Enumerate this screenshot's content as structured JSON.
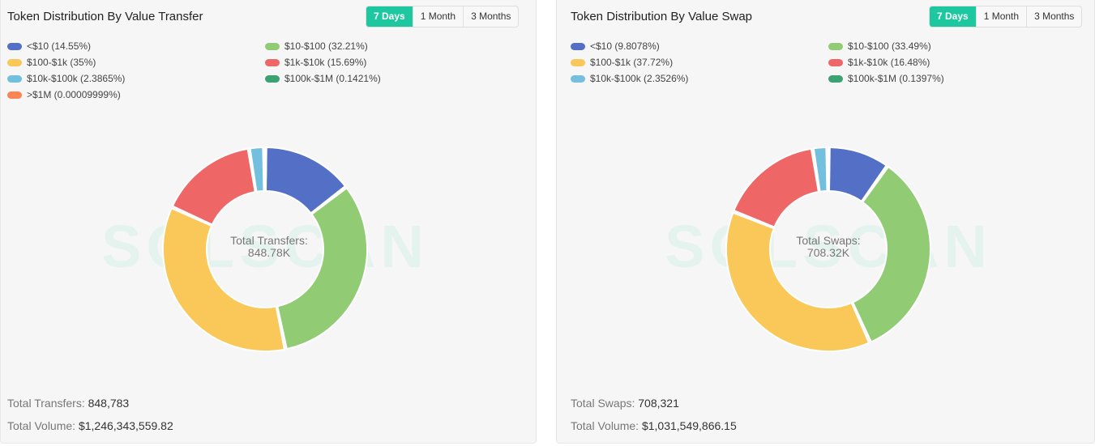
{
  "colors": {
    "accent": "#1dc8a0",
    "blue": "#5470c6",
    "green": "#91cc75",
    "yellow": "#fac858",
    "red": "#ee6666",
    "lightblue": "#73c0de",
    "darkgreen": "#3ba272",
    "orange": "#fc8452"
  },
  "watermark": "SOLSCAN",
  "tabs": [
    "7 Days",
    "1 Month",
    "3 Months"
  ],
  "transfer": {
    "title": "Token Distribution By Value Transfer",
    "center_label": "Total Transfers:",
    "center_value": "848.78K",
    "total_label": "Total Transfers:",
    "total_value": "848,783",
    "volume_label": "Total Volume:",
    "volume_value": "$1,246,343,559.82"
  },
  "swap": {
    "title": "Token Distribution By Value Swap",
    "center_label": "Total Swaps:",
    "center_value": "708.32K",
    "total_label": "Total Swaps:",
    "total_value": "708,321",
    "volume_label": "Total Volume:",
    "volume_value": "$1,031,549,866.15"
  },
  "chart_data": [
    {
      "type": "pie",
      "title": "Token Distribution By Value Transfer",
      "categories": [
        "<$10",
        "$10-$100",
        "$100-$1k",
        "$1k-$10k",
        "$10k-$100k",
        "$100k-$1M",
        ">$1M"
      ],
      "legend_labels": [
        "<$10 (14.55%)",
        "$10-$100 (32.21%)",
        "$100-$1k (35%)",
        "$1k-$10k (15.69%)",
        "$10k-$100k (2.3865%)",
        "$100k-$1M (0.1421%)",
        ">$1M (0.00009999%)"
      ],
      "values": [
        14.55,
        32.21,
        35,
        15.69,
        2.3865,
        0.1421,
        9.999e-05
      ],
      "colors": [
        "#5470c6",
        "#91cc75",
        "#fac858",
        "#ee6666",
        "#73c0de",
        "#3ba272",
        "#fc8452"
      ],
      "legend": "top"
    },
    {
      "type": "pie",
      "title": "Token Distribution By Value Swap",
      "categories": [
        "<$10",
        "$10-$100",
        "$100-$1k",
        "$1k-$10k",
        "$10k-$100k",
        "$100k-$1M"
      ],
      "legend_labels": [
        "<$10 (9.8078%)",
        "$10-$100 (33.49%)",
        "$100-$1k (37.72%)",
        "$1k-$10k (16.48%)",
        "$10k-$100k (2.3526%)",
        "$100k-$1M (0.1397%)"
      ],
      "values": [
        9.8078,
        33.49,
        37.72,
        16.48,
        2.3526,
        0.1397
      ],
      "colors": [
        "#5470c6",
        "#91cc75",
        "#fac858",
        "#ee6666",
        "#73c0de",
        "#3ba272"
      ],
      "legend": "top"
    }
  ]
}
